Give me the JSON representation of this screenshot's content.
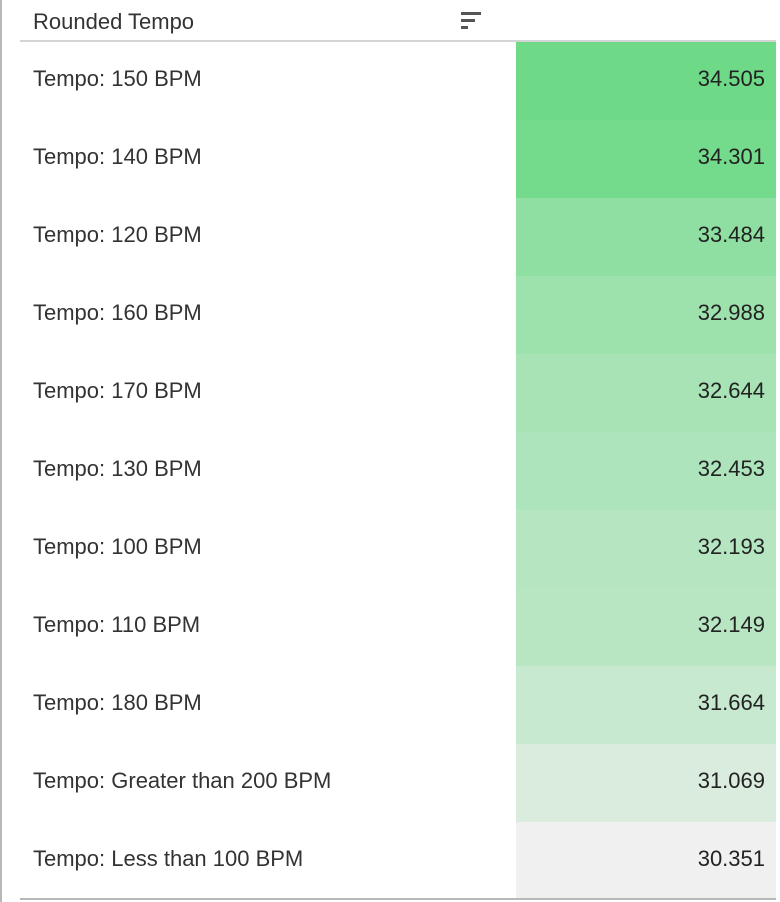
{
  "header": {
    "column_label": "Rounded Tempo",
    "sort_icon": "sort-descending-icon"
  },
  "chart_data": {
    "type": "heatmap",
    "color_scale": {
      "low": "#f0f0f0",
      "high": "#6ed987"
    },
    "categories": [
      "Tempo: 150 BPM",
      "Tempo: 140 BPM",
      "Tempo: 120 BPM",
      "Tempo: 160 BPM",
      "Tempo: 170 BPM",
      "Tempo: 130 BPM",
      "Tempo: 100 BPM",
      "Tempo: 110 BPM",
      "Tempo: 180 BPM",
      "Tempo: Greater than 200 BPM",
      "Tempo: Less than 100 BPM"
    ],
    "values": [
      34.505,
      34.301,
      33.484,
      32.988,
      32.644,
      32.453,
      32.193,
      32.149,
      31.664,
      31.069,
      30.351
    ],
    "value_labels": [
      "34.505",
      "34.301",
      "33.484",
      "32.988",
      "32.644",
      "32.453",
      "32.193",
      "32.149",
      "31.664",
      "31.069",
      "30.351"
    ]
  }
}
